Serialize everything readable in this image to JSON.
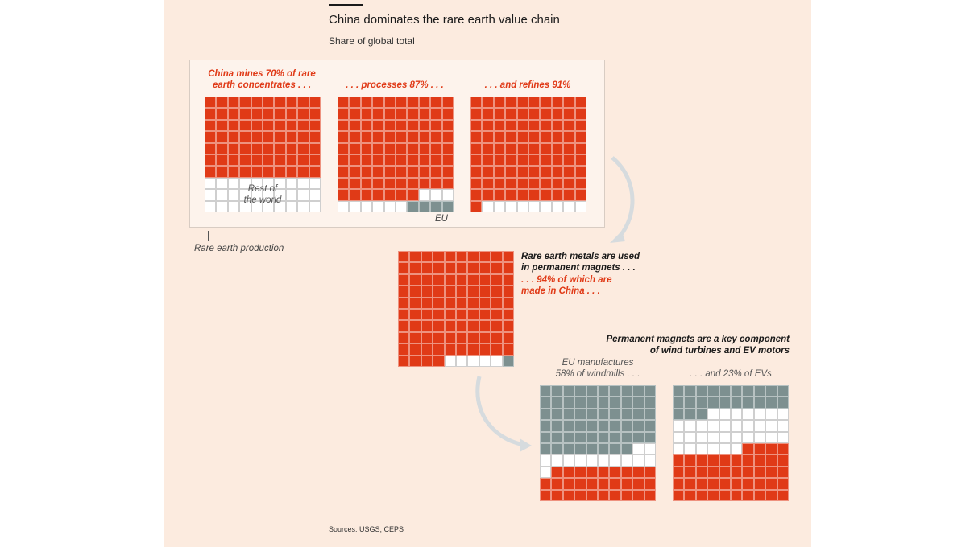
{
  "title": "China dominates the rare earth value chain",
  "subtitle": "Share of global total",
  "source": "Sources: USGS; CEPS",
  "colors": {
    "china": "#e03a17",
    "eu": "#7d9090",
    "rest": "#ffffff",
    "background": "#fcebdf"
  },
  "labels": {
    "mines": "China mines 70% of rare\nearth concentrates . . .",
    "processes": ". . . processes 87% . . .",
    "refines": ". . . and refines 91%",
    "rest_of_world": "Rest of\nthe world",
    "eu": "EU",
    "production": "Rare earth production",
    "magnets_intro": "Rare earth metals are used\nin permanent magnets . . .",
    "magnets_china": ". . . 94% of which are\nmade in China . . .",
    "components": "Permanent magnets are a key component\nof wind turbines and EV motors",
    "windmills": "EU manufactures\n58% of windmills . . .",
    "evs": ". . . and 23% of EVs"
  },
  "chart_data": {
    "type": "waffle",
    "title": "China dominates the rare earth value chain",
    "subtitle": "Share of global total",
    "unit": "% of global total (each square = 1%)",
    "panels": [
      {
        "name": "Mining (rare earth concentrates)",
        "china": 70,
        "eu": 0,
        "rest": 30
      },
      {
        "name": "Processing",
        "china": 87,
        "eu": 4,
        "rest": 9
      },
      {
        "name": "Refining",
        "china": 91,
        "eu": 0,
        "rest": 9
      },
      {
        "name": "Permanent magnets",
        "china": 94,
        "eu": 1,
        "rest": 5
      },
      {
        "name": "Windmills",
        "china": 29,
        "eu": 58,
        "rest": 13
      },
      {
        "name": "EVs",
        "china": 44,
        "eu": 23,
        "rest": 33
      }
    ]
  }
}
